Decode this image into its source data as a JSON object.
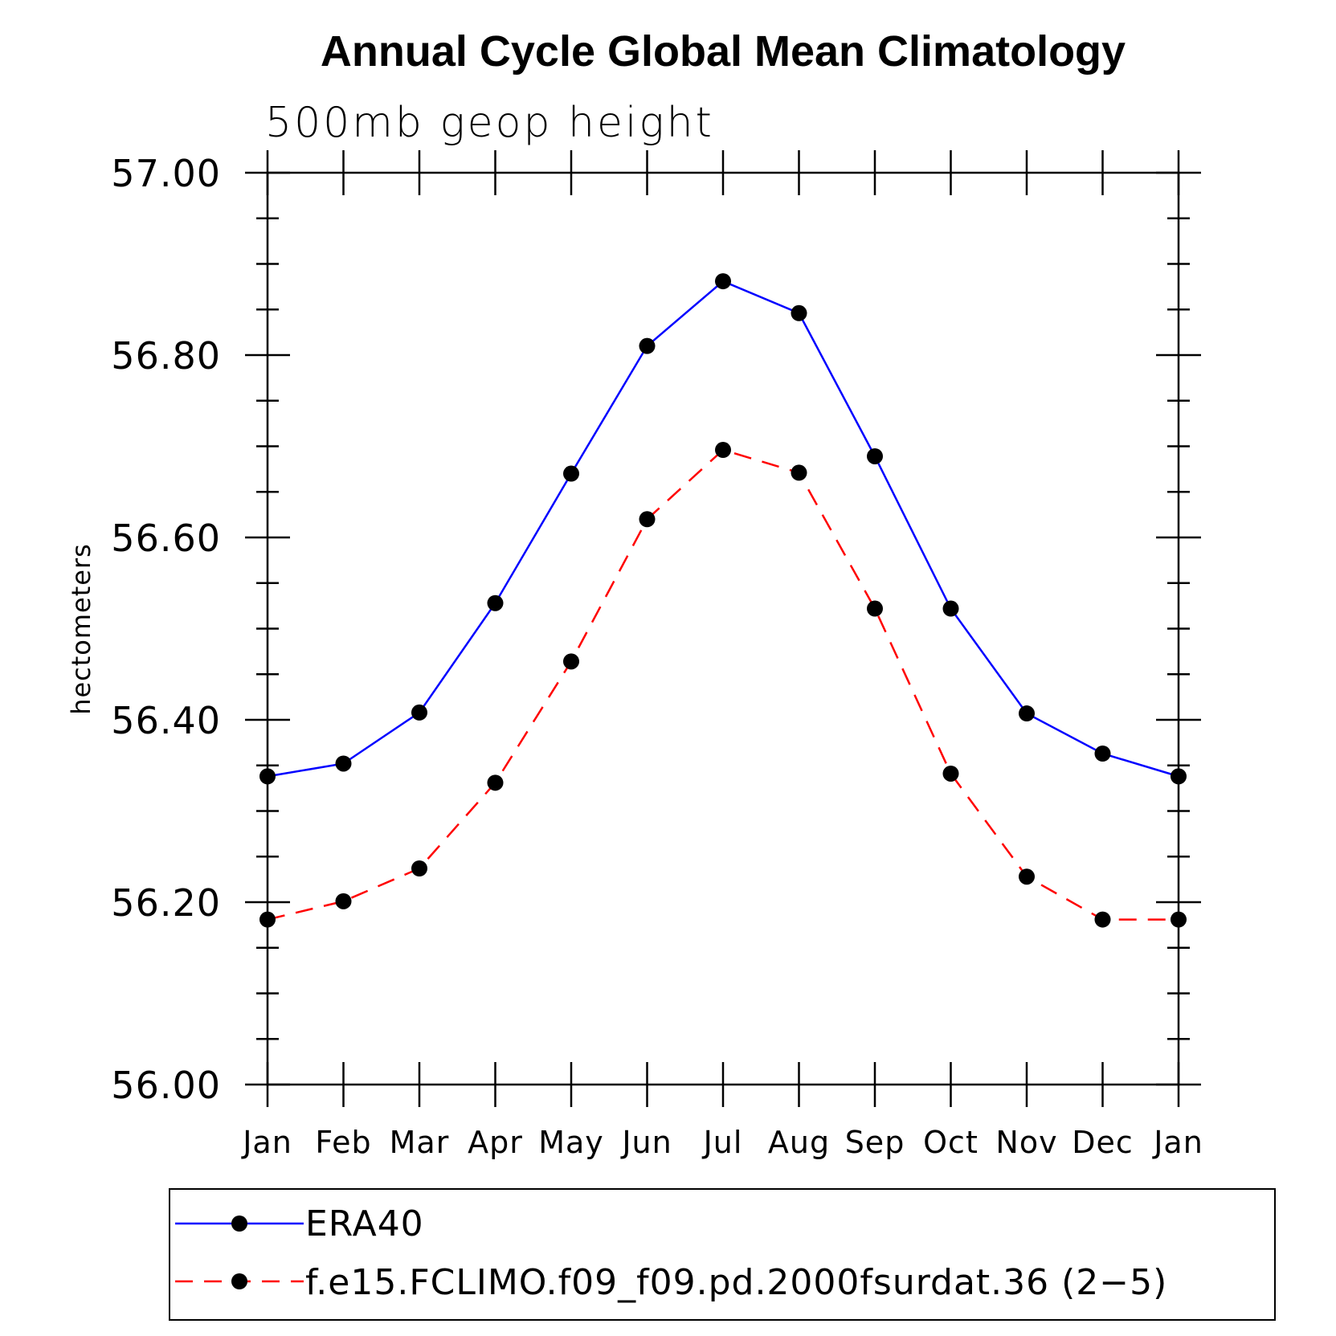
{
  "chart_data": {
    "type": "line",
    "title": "Annual Cycle Global Mean Climatology",
    "subtitle": "500mb geop height",
    "ylabel": "hectometers",
    "xlabel": "",
    "categories": [
      "Jan",
      "Feb",
      "Mar",
      "Apr",
      "May",
      "Jun",
      "Jul",
      "Aug",
      "Sep",
      "Oct",
      "Nov",
      "Dec",
      "Jan"
    ],
    "ylim": [
      56.0,
      57.0
    ],
    "yticks": [
      "56.00",
      "56.20",
      "56.40",
      "56.60",
      "56.80",
      "57.00"
    ],
    "grid": false,
    "legend_position": "bottom",
    "series": [
      {
        "name": "ERA40",
        "color": "#0000ff",
        "style": "solid",
        "marker": "circle",
        "values": [
          56.338,
          56.352,
          56.408,
          56.528,
          56.67,
          56.81,
          56.881,
          56.846,
          56.689,
          56.522,
          56.407,
          56.363,
          56.338
        ]
      },
      {
        "name": "f.e15.FCLIMO.f09_f09.pd.2000fsurdat.36 (2−5)",
        "color": "#ff0000",
        "style": "dashed",
        "marker": "circle",
        "values": [
          56.181,
          56.201,
          56.237,
          56.331,
          56.464,
          56.62,
          56.696,
          56.671,
          56.522,
          56.341,
          56.228,
          56.181,
          56.181
        ]
      }
    ]
  }
}
